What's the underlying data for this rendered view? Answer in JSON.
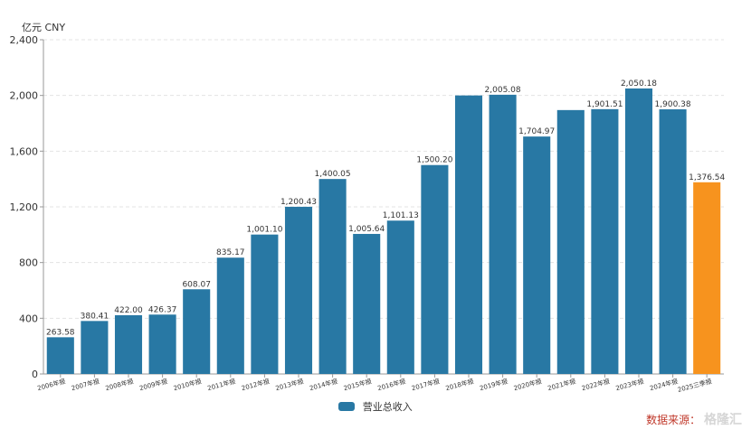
{
  "chart_data": {
    "type": "bar",
    "unit_label": "亿元  CNY",
    "categories": [
      "2006年报",
      "2007年报",
      "2008年报",
      "2009年报",
      "2010年报",
      "2011年报",
      "2012年报",
      "2013年报",
      "2014年报",
      "2015年报",
      "2016年报",
      "2017年报",
      "2018年报",
      "2019年报",
      "2020年报",
      "2021年报",
      "2022年报",
      "2023年报",
      "2024年报",
      "2025三季报"
    ],
    "series": [
      {
        "name": "营业总收入",
        "values": [
          263.58,
          380.41,
          422.0,
          426.37,
          608.07,
          835.17,
          1001.1,
          1200.43,
          1400.05,
          1005.64,
          1101.13,
          1500.2,
          2000.0,
          2005.08,
          1704.97,
          1895.0,
          1901.51,
          2050.18,
          1900.38,
          1376.54
        ],
        "data_labels": [
          "263.58",
          "380.41",
          "422.00",
          "426.37",
          "608.07",
          "835.17",
          "1,001.10",
          "1,200.43",
          "1,400.05",
          "1,005.64",
          "1,101.13",
          "1,500.20",
          "",
          "2,005.08",
          "1,704.97",
          "",
          "1,901.51",
          "2,050.18",
          "1,900.38",
          "1,376.54"
        ]
      }
    ],
    "ylim": [
      0,
      2400
    ],
    "yticks": [
      0,
      400,
      800,
      1200,
      1600,
      2000,
      2400
    ],
    "ytick_labels": [
      "0",
      "400",
      "800",
      "1,200",
      "1,600",
      "2,000",
      "2,400"
    ],
    "grid": true,
    "legend_position": "bottom-center",
    "colors": {
      "bar": "#2878a4",
      "highlight": "#f7931e",
      "grid": "#e3e3e3",
      "axis": "#999999",
      "text": "#333333"
    },
    "highlight_index": 19
  },
  "watermark": {
    "source": "数据来源：",
    "brand": "格隆汇"
  }
}
